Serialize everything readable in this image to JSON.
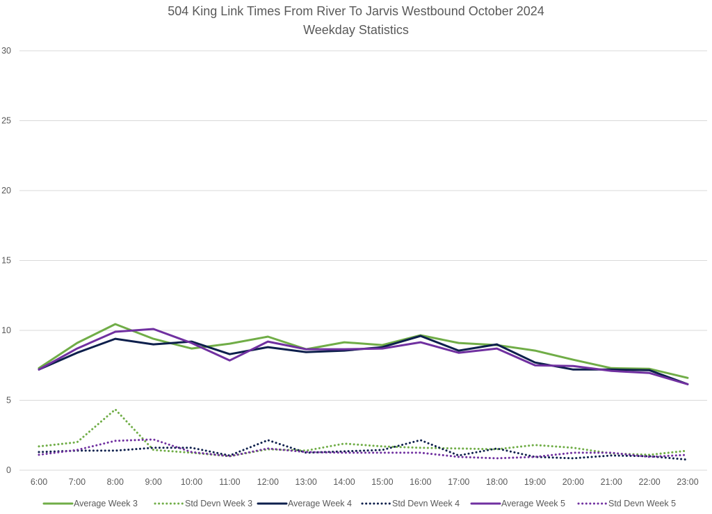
{
  "chart_data": {
    "type": "line",
    "title": [
      "504 King Link Times From River To Jarvis Westbound October 2024",
      "Weekday Statistics"
    ],
    "xlabel": "",
    "ylabel": "",
    "categories": [
      "6:00",
      "7:00",
      "8:00",
      "9:00",
      "10:00",
      "11:00",
      "12:00",
      "13:00",
      "14:00",
      "15:00",
      "16:00",
      "17:00",
      "18:00",
      "19:00",
      "20:00",
      "21:00",
      "22:00",
      "23:00"
    ],
    "ylim": [
      0,
      30
    ],
    "yticks": [
      "0",
      "5",
      "10",
      "15",
      "20",
      "25",
      "30"
    ],
    "grid": true,
    "legend_position": "bottom",
    "series": [
      {
        "name": "Average Week 3",
        "color": "#70ad47",
        "dash": "solid",
        "values": [
          7.3,
          9.1,
          10.45,
          9.4,
          8.7,
          9.05,
          9.55,
          8.65,
          9.15,
          8.95,
          9.65,
          9.1,
          8.95,
          8.55,
          7.9,
          7.3,
          7.25,
          6.6
        ]
      },
      {
        "name": "Std Devn Week 3",
        "color": "#70ad47",
        "dash": "dotted",
        "values": [
          1.7,
          2.0,
          4.35,
          1.45,
          1.25,
          1.0,
          1.5,
          1.4,
          1.9,
          1.7,
          1.6,
          1.55,
          1.5,
          1.8,
          1.6,
          1.2,
          1.1,
          1.4
        ]
      },
      {
        "name": "Average Week 4",
        "color": "#0d1f4c",
        "dash": "solid",
        "values": [
          7.2,
          8.4,
          9.4,
          9.0,
          9.2,
          8.3,
          8.8,
          8.45,
          8.55,
          8.8,
          9.6,
          8.55,
          9.0,
          7.7,
          7.2,
          7.2,
          7.15,
          6.15
        ]
      },
      {
        "name": "Std Devn Week 4",
        "color": "#0d1f4c",
        "dash": "dotted",
        "values": [
          1.3,
          1.4,
          1.4,
          1.6,
          1.6,
          1.05,
          2.15,
          1.25,
          1.35,
          1.45,
          2.15,
          1.05,
          1.55,
          0.95,
          0.85,
          1.05,
          1.0,
          0.75
        ]
      },
      {
        "name": "Average Week 5",
        "color": "#7030a0",
        "dash": "solid",
        "values": [
          7.2,
          8.7,
          9.9,
          10.1,
          9.1,
          7.85,
          9.2,
          8.65,
          8.65,
          8.7,
          9.15,
          8.4,
          8.7,
          7.5,
          7.45,
          7.1,
          6.95,
          6.15
        ]
      },
      {
        "name": "Std Devn Week 5",
        "color": "#7030a0",
        "dash": "dotted",
        "values": [
          1.1,
          1.45,
          2.1,
          2.2,
          1.3,
          1.0,
          1.55,
          1.3,
          1.25,
          1.25,
          1.25,
          0.95,
          0.85,
          0.95,
          1.25,
          1.25,
          0.95,
          1.1
        ]
      }
    ]
  }
}
